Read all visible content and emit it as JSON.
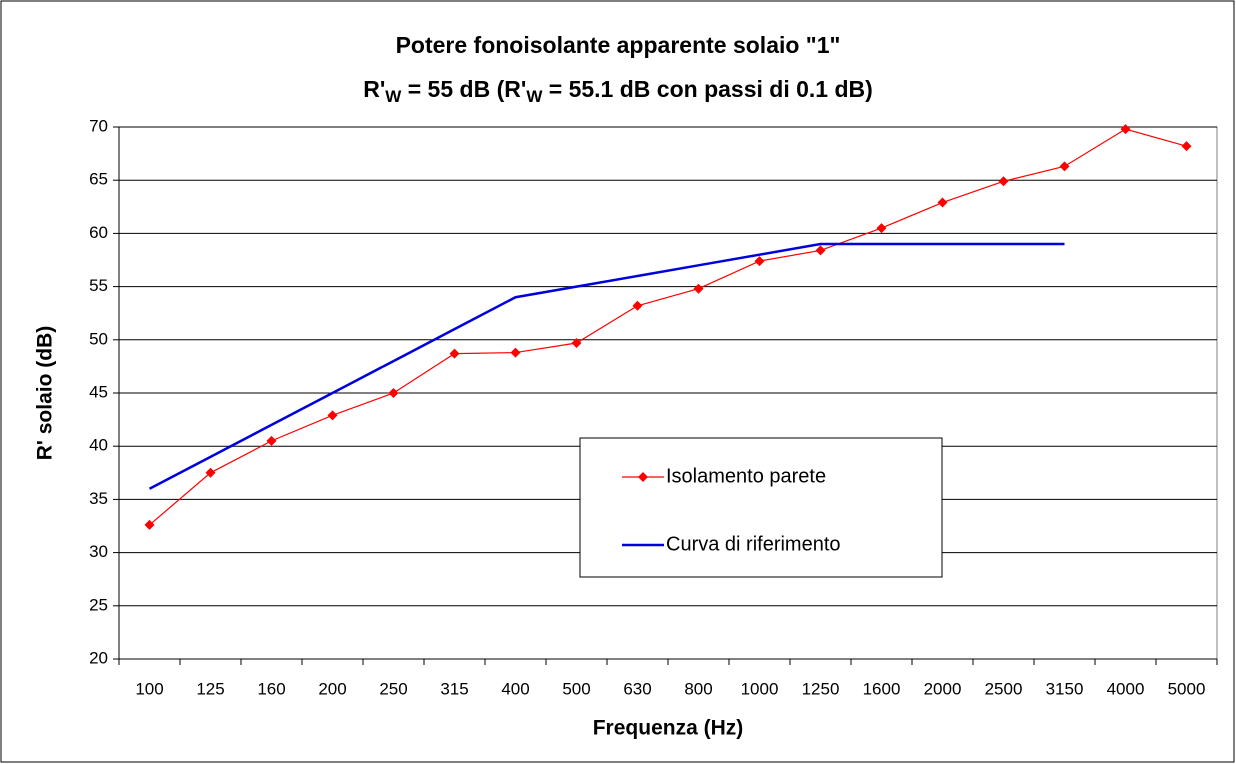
{
  "chart_data": {
    "type": "line",
    "title": "Potere fonoisolante apparente solaio \"1\"",
    "subtitle_parts": [
      "R'",
      "W",
      " = 55 dB  (R'",
      "W",
      " = 55.1 dB con passi di 0.1 dB)"
    ],
    "x_label": "Frequenza (Hz)",
    "y_label": "R' solaio (dB)",
    "categories": [
      "100",
      "125",
      "160",
      "200",
      "250",
      "315",
      "400",
      "500",
      "630",
      "800",
      "1000",
      "1250",
      "1600",
      "2000",
      "2500",
      "3150",
      "4000",
      "5000"
    ],
    "series": [
      {
        "name": "Isolamento parete",
        "color": "#ff0000",
        "marker": "diamond",
        "values": [
          32.6,
          37.5,
          40.5,
          42.9,
          45.0,
          48.7,
          48.8,
          49.7,
          53.2,
          54.8,
          57.4,
          58.4,
          60.5,
          62.9,
          64.9,
          66.3,
          69.8,
          68.2
        ]
      },
      {
        "name": "Curva di riferimento",
        "color": "#0000dd",
        "marker": "none",
        "values": [
          36,
          39,
          42,
          45,
          48,
          51,
          54,
          55,
          56,
          57,
          58,
          59,
          59,
          59,
          59,
          59,
          null,
          null
        ]
      }
    ],
    "ylim": [
      20,
      70
    ],
    "yticks": [
      20,
      25,
      30,
      35,
      40,
      45,
      50,
      55,
      60,
      65,
      70
    ],
    "grid": true,
    "legend": "center"
  }
}
